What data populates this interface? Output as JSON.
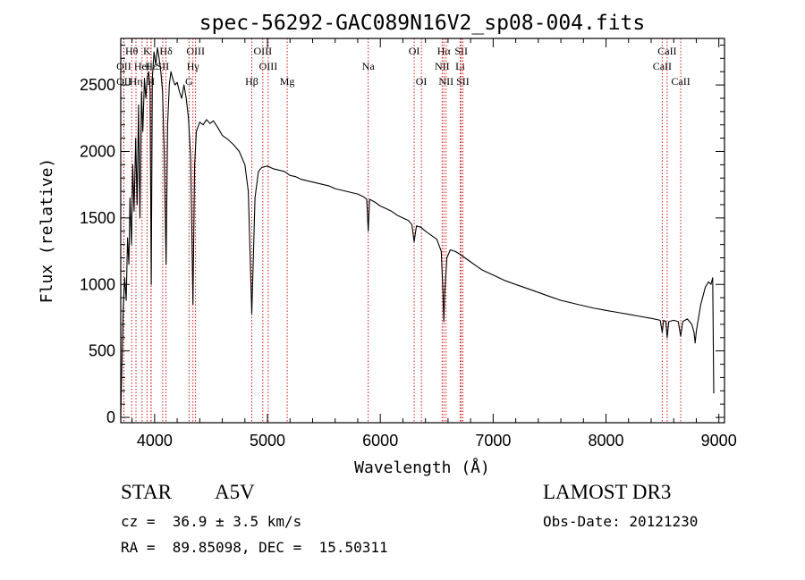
{
  "chart_data": {
    "type": "line",
    "title": "spec-56292-GAC089N16V2_sp08-004.fits",
    "xlabel": "Wavelength (Å)",
    "ylabel": "Flux (relative)",
    "xlim": [
      3700,
      9050
    ],
    "ylim": [
      -40,
      2850
    ],
    "x_ticks": [
      4000,
      5000,
      6000,
      7000,
      8000,
      9000
    ],
    "x_tick_labels": [
      "4000",
      "5000",
      "6000",
      "7000",
      "8000",
      "9000"
    ],
    "y_ticks": [
      0,
      500,
      1000,
      1500,
      2000,
      2500
    ],
    "y_tick_labels": [
      "0",
      "500",
      "1000",
      "1500",
      "2000",
      "2500"
    ],
    "series": [
      {
        "name": "flux",
        "points": [
          [
            3700,
            0
          ],
          [
            3710,
            400
          ],
          [
            3722,
            820
          ],
          [
            3735,
            1050
          ],
          [
            3748,
            880
          ],
          [
            3760,
            1350
          ],
          [
            3772,
            1150
          ],
          [
            3782,
            1650
          ],
          [
            3795,
            1300
          ],
          [
            3806,
            1900
          ],
          [
            3818,
            1550
          ],
          [
            3832,
            2100
          ],
          [
            3845,
            1600
          ],
          [
            3858,
            2350
          ],
          [
            3870,
            1500
          ],
          [
            3884,
            2450
          ],
          [
            3896,
            2150
          ],
          [
            3910,
            2550
          ],
          [
            3922,
            2400
          ],
          [
            3935,
            2550
          ],
          [
            3948,
            2600
          ],
          [
            3960,
            2450
          ],
          [
            3970,
            1000
          ],
          [
            3980,
            2550
          ],
          [
            3995,
            2750
          ],
          [
            4010,
            2650
          ],
          [
            4025,
            2780
          ],
          [
            4040,
            2700
          ],
          [
            4055,
            2600
          ],
          [
            4070,
            2450
          ],
          [
            4085,
            2000
          ],
          [
            4102,
            1150
          ],
          [
            4115,
            2200
          ],
          [
            4130,
            2500
          ],
          [
            4145,
            2600
          ],
          [
            4160,
            2550
          ],
          [
            4180,
            2500
          ],
          [
            4200,
            2520
          ],
          [
            4220,
            2450
          ],
          [
            4240,
            2400
          ],
          [
            4260,
            2500
          ],
          [
            4280,
            2400
          ],
          [
            4300,
            2250
          ],
          [
            4320,
            1950
          ],
          [
            4340,
            850
          ],
          [
            4355,
            1900
          ],
          [
            4370,
            2150
          ],
          [
            4400,
            2220
          ],
          [
            4430,
            2200
          ],
          [
            4460,
            2240
          ],
          [
            4490,
            2210
          ],
          [
            4520,
            2230
          ],
          [
            4560,
            2180
          ],
          [
            4600,
            2120
          ],
          [
            4650,
            2090
          ],
          [
            4700,
            2050
          ],
          [
            4750,
            2000
          ],
          [
            4800,
            1900
          ],
          [
            4830,
            1700
          ],
          [
            4861,
            780
          ],
          [
            4890,
            1650
          ],
          [
            4920,
            1850
          ],
          [
            4950,
            1880
          ],
          [
            5000,
            1890
          ],
          [
            5050,
            1870
          ],
          [
            5100,
            1860
          ],
          [
            5150,
            1850
          ],
          [
            5200,
            1820
          ],
          [
            5250,
            1810
          ],
          [
            5300,
            1790
          ],
          [
            5350,
            1780
          ],
          [
            5400,
            1770
          ],
          [
            5450,
            1760
          ],
          [
            5500,
            1750
          ],
          [
            5550,
            1740
          ],
          [
            5600,
            1720
          ],
          [
            5650,
            1710
          ],
          [
            5700,
            1700
          ],
          [
            5750,
            1690
          ],
          [
            5800,
            1680
          ],
          [
            5850,
            1660
          ],
          [
            5880,
            1640
          ],
          [
            5893,
            1400
          ],
          [
            5905,
            1640
          ],
          [
            5950,
            1620
          ],
          [
            6000,
            1590
          ],
          [
            6050,
            1570
          ],
          [
            6100,
            1550
          ],
          [
            6150,
            1520
          ],
          [
            6200,
            1500
          ],
          [
            6250,
            1480
          ],
          [
            6280,
            1450
          ],
          [
            6300,
            1320
          ],
          [
            6320,
            1440
          ],
          [
            6360,
            1430
          ],
          [
            6400,
            1400
          ],
          [
            6450,
            1370
          ],
          [
            6500,
            1340
          ],
          [
            6540,
            1250
          ],
          [
            6555,
            950
          ],
          [
            6563,
            720
          ],
          [
            6572,
            950
          ],
          [
            6590,
            1200
          ],
          [
            6620,
            1260
          ],
          [
            6660,
            1250
          ],
          [
            6700,
            1230
          ],
          [
            6750,
            1200
          ],
          [
            6800,
            1170
          ],
          [
            6850,
            1140
          ],
          [
            6900,
            1110
          ],
          [
            6950,
            1090
          ],
          [
            7000,
            1070
          ],
          [
            7100,
            1030
          ],
          [
            7200,
            1000
          ],
          [
            7300,
            970
          ],
          [
            7400,
            940
          ],
          [
            7500,
            910
          ],
          [
            7600,
            880
          ],
          [
            7700,
            860
          ],
          [
            7800,
            840
          ],
          [
            7900,
            820
          ],
          [
            8000,
            805
          ],
          [
            8100,
            790
          ],
          [
            8200,
            775
          ],
          [
            8300,
            760
          ],
          [
            8400,
            745
          ],
          [
            8480,
            730
          ],
          [
            8498,
            640
          ],
          [
            8510,
            730
          ],
          [
            8530,
            720
          ],
          [
            8542,
            600
          ],
          [
            8556,
            720
          ],
          [
            8600,
            730
          ],
          [
            8640,
            720
          ],
          [
            8662,
            610
          ],
          [
            8680,
            720
          ],
          [
            8720,
            740
          ],
          [
            8760,
            700
          ],
          [
            8780,
            640
          ],
          [
            8790,
            560
          ],
          [
            8800,
            650
          ],
          [
            8840,
            850
          ],
          [
            8880,
            980
          ],
          [
            8910,
            1020
          ],
          [
            8930,
            1000
          ],
          [
            8945,
            1050
          ],
          [
            8955,
            180
          ]
        ]
      }
    ],
    "lines": [
      {
        "label": "Hθ",
        "wavelength": 3797,
        "row": 0
      },
      {
        "label": "OII",
        "wavelength": 3727,
        "row": 1
      },
      {
        "label": "OII",
        "wavelength": 3727,
        "row": 2
      },
      {
        "label": "HeI",
        "wavelength": 3889,
        "row": 1
      },
      {
        "label": "Hη",
        "wavelength": 3835,
        "row": 2
      },
      {
        "label": "K",
        "wavelength": 3933,
        "row": 0
      },
      {
        "label": "H",
        "wavelength": 3968,
        "row": 2
      },
      {
        "label": "Hε",
        "wavelength": 3970,
        "row": 1
      },
      {
        "label": "Hδ",
        "wavelength": 4101,
        "row": 0
      },
      {
        "label": "SII",
        "wavelength": 4072,
        "row": 1
      },
      {
        "label": "OIII",
        "wavelength": 4363,
        "row": 0
      },
      {
        "label": "Hγ",
        "wavelength": 4340,
        "row": 1
      },
      {
        "label": "G",
        "wavelength": 4305,
        "row": 2
      },
      {
        "label": "Hβ",
        "wavelength": 4861,
        "row": 2
      },
      {
        "label": "OIII",
        "wavelength": 4959,
        "row": 0
      },
      {
        "label": "OIII",
        "wavelength": 5007,
        "row": 1
      },
      {
        "label": "Mg",
        "wavelength": 5175,
        "row": 2
      },
      {
        "label": "Na",
        "wavelength": 5893,
        "row": 1
      },
      {
        "label": "OI",
        "wavelength": 6300,
        "row": 0
      },
      {
        "label": "OI",
        "wavelength": 6364,
        "row": 2
      },
      {
        "label": "Hα",
        "wavelength": 6563,
        "row": 0
      },
      {
        "label": "NII",
        "wavelength": 6548,
        "row": 1
      },
      {
        "label": "NII",
        "wavelength": 6583,
        "row": 2
      },
      {
        "label": "SII",
        "wavelength": 6717,
        "row": 0
      },
      {
        "label": "Li",
        "wavelength": 6708,
        "row": 1
      },
      {
        "label": "SII",
        "wavelength": 6731,
        "row": 2
      },
      {
        "label": "CaII",
        "wavelength": 8542,
        "row": 0
      },
      {
        "label": "CaII",
        "wavelength": 8498,
        "row": 1
      },
      {
        "label": "CaII",
        "wavelength": 8662,
        "row": 2
      }
    ],
    "colors": {
      "spectrum": "#000000",
      "line_markers": "#cc0000",
      "axes": "#000000"
    }
  },
  "info": {
    "class": "STAR",
    "subclass": "A5V",
    "survey": "LAMOST DR3",
    "redshift": "cz =  36.9 ± 3.5 km/s",
    "obs_date": "Obs-Date: 20121230",
    "coords": "RA =  89.85098, DEC =  15.50311"
  }
}
